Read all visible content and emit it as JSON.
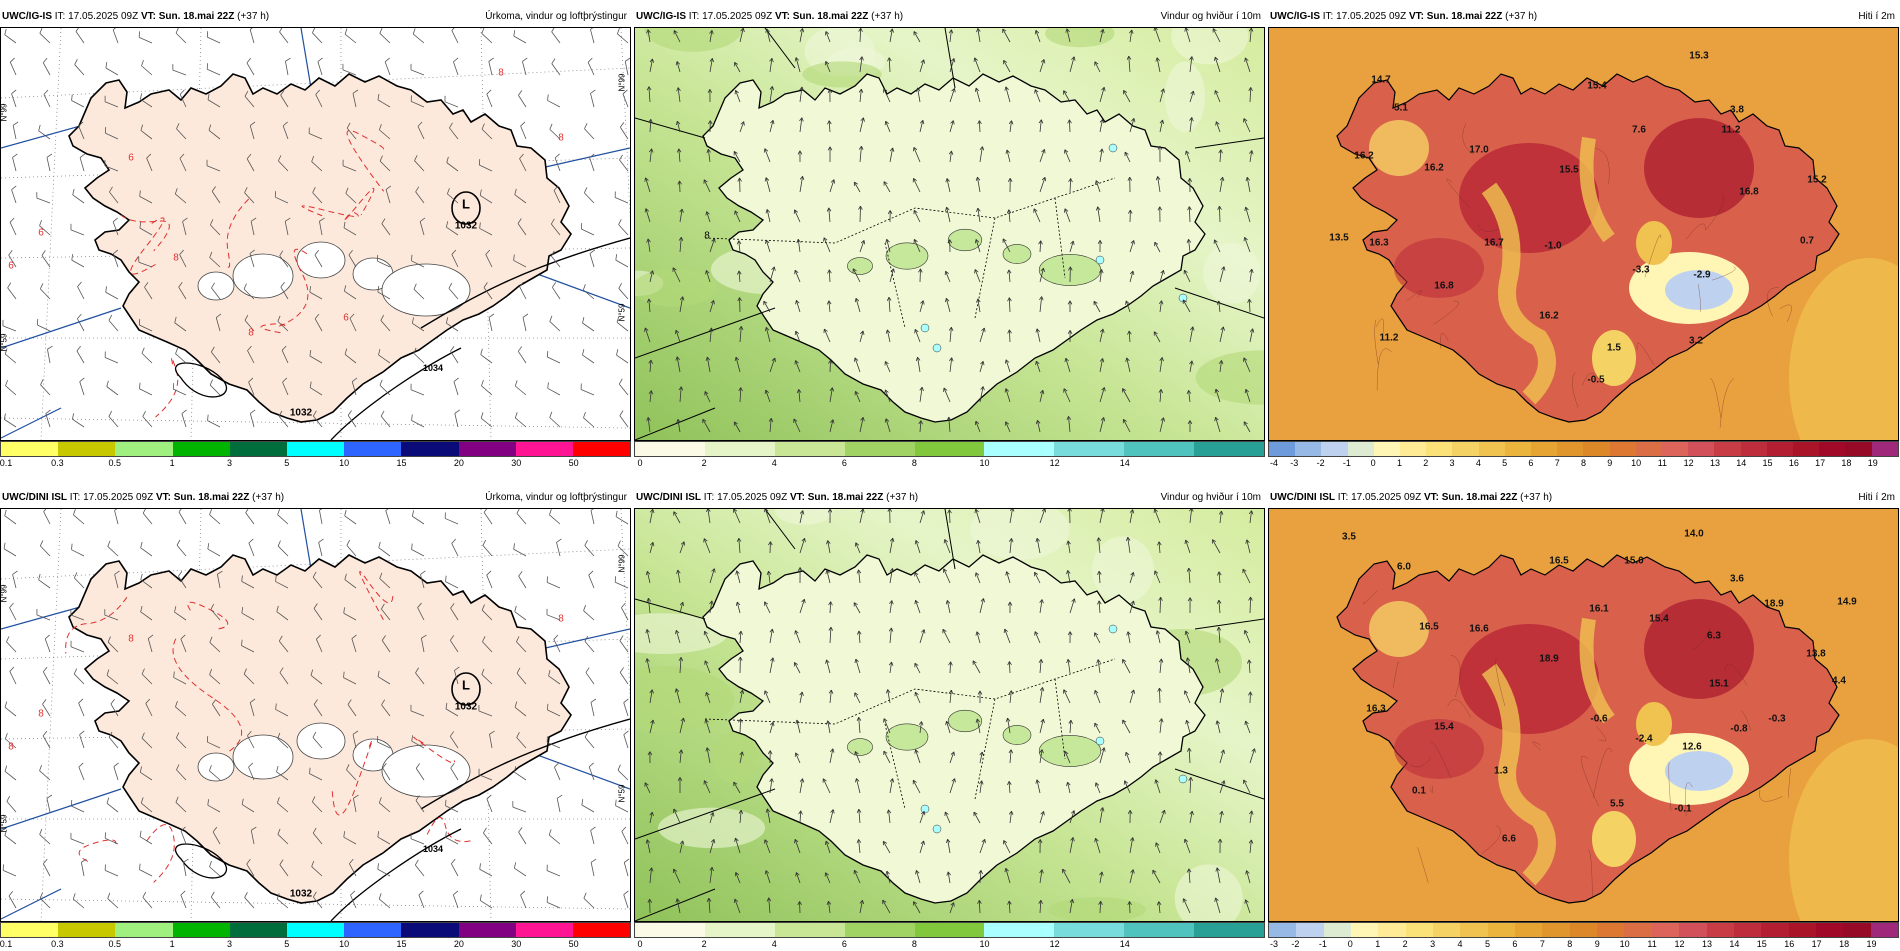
{
  "rows": [
    {
      "model": "UWC/IG-IS",
      "it": "IT: 17.05.2025 09Z",
      "vt_label": "VT:",
      "vt": "Sun. 18.mai 22Z",
      "lead": "(+37 h)",
      "precip": {
        "title": "Úrkoma, vindur og loftþrýstingur",
        "low_label": "L",
        "low_value": "1032",
        "south_value": "1032",
        "coast_value": "1034",
        "contour_labels": [
          "6",
          "6",
          "6",
          "8",
          "8",
          "8",
          "6",
          "8"
        ]
      },
      "wind": {
        "title": "Vindur og hviður í 10m",
        "west_label": "8"
      },
      "temp": {
        "title": "Hiti í 2m",
        "values": [
          "15.3",
          "14.7",
          "15.4",
          "5.1",
          "11.2",
          "7.6",
          "3.8",
          "16.2",
          "16.2",
          "17.0",
          "15.5",
          "16.8",
          "15.2",
          "13.5",
          "16.3",
          "16.7",
          "-1.0",
          "0.7",
          "-3.3",
          "-2.9",
          "16.8",
          "11.2",
          "16.2",
          "1.5",
          "3.2",
          "-0.5"
        ]
      }
    },
    {
      "model": "UWC/DINI ISL",
      "it": "IT: 17.05.2025 09Z",
      "vt_label": "VT:",
      "vt": "Sun. 18.mai 22Z",
      "lead": "(+37 h)",
      "precip": {
        "title": "Úrkoma, vindur og loftþrýstingur",
        "low_label": "L",
        "low_value": "1032",
        "south_value": "1032",
        "coast_value": "1034",
        "contour_labels": [
          "8",
          "8",
          "8",
          "8"
        ]
      },
      "wind": {
        "title": "Vindur og hviður í 10m",
        "west_label": ""
      },
      "temp": {
        "title": "Hiti í 2m",
        "values": [
          "3.5",
          "14.0",
          "6.0",
          "16.5",
          "15.0",
          "3.6",
          "16.1",
          "15.4",
          "18.9",
          "14.9",
          "16.5",
          "16.6",
          "6.3",
          "13.8",
          "4.4",
          "18.9",
          "15.1",
          "16.3",
          "-0.6",
          "-0.3",
          "-0.8",
          "15.4",
          "-2.4",
          "12.6",
          "1.3",
          "5.5",
          "0.1",
          "6.6",
          "-0.1"
        ]
      }
    }
  ],
  "lat_labels": {
    "n66": "N°99",
    "n65": "N°59"
  },
  "legends": {
    "precip": {
      "ticks": [
        "0.1",
        "0.3",
        "0.5",
        "1",
        "3",
        "5",
        "10",
        "15",
        "20",
        "30",
        "50"
      ],
      "colors": [
        "#ffff66",
        "#c8c800",
        "#a0f080",
        "#00b400",
        "#006e3c",
        "#00ffff",
        "#2e64ff",
        "#0a0a78",
        "#820082",
        "#ff1493",
        "#ff0000"
      ]
    },
    "wind": {
      "ticks": [
        "0",
        "2",
        "4",
        "6",
        "8",
        "10",
        "12",
        "14"
      ],
      "colors": [
        "#fafae6",
        "#e6f5c8",
        "#c8e696",
        "#a0d264",
        "#82c83c",
        "#aaffff",
        "#78dcdc",
        "#50c3be",
        "#28a096"
      ]
    },
    "temp1": {
      "ticks": [
        "-4",
        "-3",
        "-2",
        "-1",
        "0",
        "1",
        "2",
        "3",
        "4",
        "5",
        "6",
        "7",
        "8",
        "9",
        "10",
        "11",
        "12",
        "13",
        "14",
        "15",
        "16",
        "17",
        "18",
        "19"
      ],
      "colors": [
        "#6e9bdc",
        "#96b9e6",
        "#bed2f0",
        "#dcebd2",
        "#fff5b4",
        "#ffeb96",
        "#fae178",
        "#f5d264",
        "#f0c350",
        "#ebb43c",
        "#e6a532",
        "#e1962d",
        "#dc8728",
        "#dc7832",
        "#dc6e46",
        "#dc645a",
        "#d2505a",
        "#c83c46",
        "#be2d3c",
        "#b41e32",
        "#aa1428",
        "#a00a28",
        "#960a28",
        "#a0287a"
      ]
    },
    "temp2": {
      "ticks": [
        "-3",
        "-2",
        "-1",
        "0",
        "1",
        "2",
        "3",
        "4",
        "5",
        "6",
        "7",
        "8",
        "9",
        "10",
        "11",
        "12",
        "13",
        "14",
        "15",
        "16",
        "17",
        "18",
        "19"
      ],
      "colors": [
        "#96b9e6",
        "#bed2f0",
        "#dcebd2",
        "#fff5b4",
        "#ffeb96",
        "#fae178",
        "#f5d264",
        "#f0c350",
        "#ebb43c",
        "#e6a532",
        "#e1962d",
        "#dc8728",
        "#dc7832",
        "#dc6e46",
        "#dc645a",
        "#d2505a",
        "#c83c46",
        "#be2d3c",
        "#b41e32",
        "#aa1428",
        "#a00a28",
        "#960a28",
        "#a0287a"
      ]
    }
  },
  "colors": {
    "land_precip": "#fde9dc",
    "sea_precip": "#ffffff",
    "wind_land": "#f1f8d6",
    "wind_sea": "#b6da7e",
    "temp_sea": "#e9a13f",
    "temp_land": "#d9614c",
    "coast": "#000000",
    "contour_red": "#e03030",
    "grid_blue": "#2050a0"
  },
  "icons": [
    "iceland-coastline-icon",
    "low-pressure-marker-icon",
    "wind-barb-icon",
    "wind-arrow-icon"
  ]
}
